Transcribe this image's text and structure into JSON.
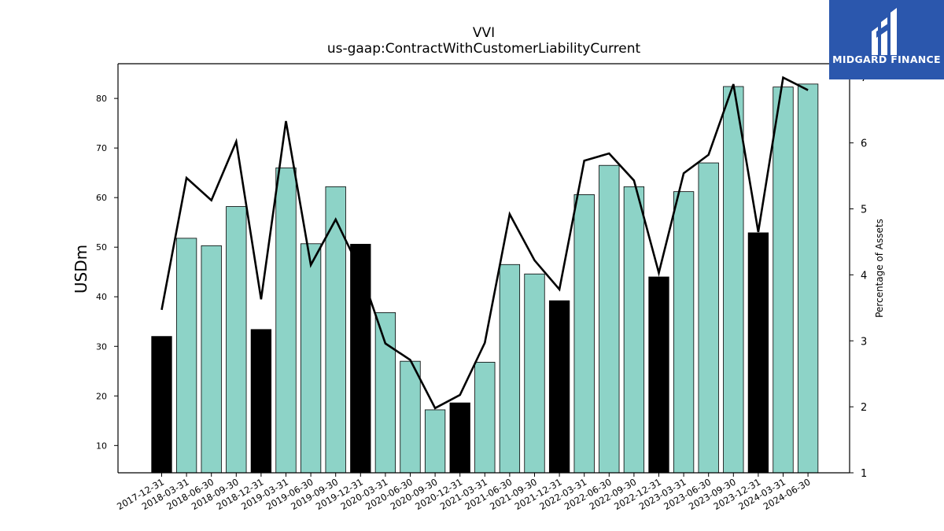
{
  "title": "VVI",
  "subtitle": "us-gaap:ContractWithCustomerLiabilityCurrent",
  "logo": {
    "text": "MIDGARD FINANCE",
    "icon": "midgard-logo-icon",
    "background": "#2b57ad"
  },
  "colors": {
    "bar_default": "#8dd3c7",
    "bar_year_end": "#000000",
    "line": "#000000"
  },
  "chart_data": {
    "type": "bar",
    "ylabel": "USDm",
    "y2label": "Percentage of Assets",
    "ylim": [
      4.5,
      87
    ],
    "y2lim": [
      1,
      7.2
    ],
    "yticks": [
      10,
      20,
      30,
      40,
      50,
      60,
      70,
      80
    ],
    "y2ticks": [
      1,
      2,
      3,
      4,
      5,
      6,
      7
    ],
    "categories": [
      "2017-12-31",
      "2018-03-31",
      "2018-06-30",
      "2018-09-30",
      "2018-12-31",
      "2019-03-31",
      "2019-06-30",
      "2019-09-30",
      "2019-12-31",
      "2020-03-31",
      "2020-06-30",
      "2020-09-30",
      "2020-12-31",
      "2021-03-31",
      "2021-06-30",
      "2021-09-30",
      "2021-12-31",
      "2022-03-31",
      "2022-06-30",
      "2022-09-30",
      "2022-12-31",
      "2023-03-31",
      "2023-06-30",
      "2023-09-30",
      "2023-12-31",
      "2024-03-31",
      "2024-06-30"
    ],
    "series": [
      {
        "type": "bar",
        "values": [
          32.0,
          51.8,
          50.3,
          58.2,
          33.4,
          66.0,
          50.7,
          62.2,
          50.6,
          36.8,
          27.0,
          17.2,
          18.6,
          26.8,
          46.5,
          44.6,
          39.2,
          60.6,
          66.5,
          62.2,
          44.0,
          61.2,
          67.0,
          82.4,
          52.9,
          82.3,
          82.9
        ]
      },
      {
        "type": "line",
        "axis": "secondary",
        "values": [
          3.47,
          5.47,
          5.13,
          6.02,
          3.63,
          6.33,
          4.15,
          4.84,
          4.06,
          2.96,
          2.71,
          1.98,
          2.18,
          2.97,
          4.92,
          4.22,
          3.78,
          5.73,
          5.84,
          5.43,
          4.03,
          5.54,
          5.82,
          6.89,
          4.65,
          6.99,
          6.8
        ]
      }
    ],
    "highlight_categories": [
      "2017-12-31",
      "2018-12-31",
      "2019-12-31",
      "2020-12-31",
      "2021-12-31",
      "2022-12-31",
      "2023-12-31"
    ],
    "grid": false,
    "legend": "none"
  }
}
